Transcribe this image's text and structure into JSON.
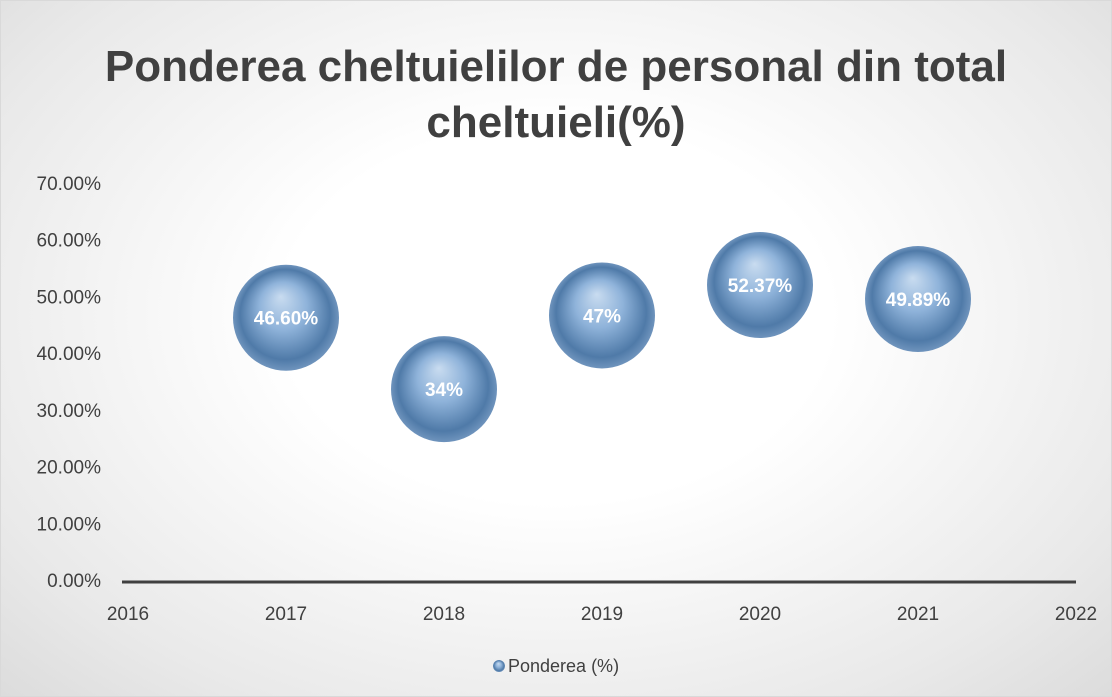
{
  "chart_data": {
    "type": "bubble",
    "title": "Ponderea cheltuielilor de personal din total cheltuieli(%)",
    "x": [
      2017,
      2018,
      2019,
      2020,
      2021
    ],
    "series": [
      {
        "name": "Ponderea (%)",
        "color": "#6f9fd0",
        "values": [
          46.6,
          34,
          47,
          52.37,
          49.89
        ],
        "value_labels": [
          "46.60%",
          "34%",
          "47%",
          "52.37%",
          "49.89%"
        ]
      }
    ],
    "xlim": [
      2016,
      2022
    ],
    "xticks": [
      2016,
      2017,
      2018,
      2019,
      2020,
      2021,
      2022
    ],
    "ylim": [
      0,
      70
    ],
    "yticks": [
      {
        "value": 0,
        "label": "0.00%"
      },
      {
        "value": 10,
        "label": "10.00%"
      },
      {
        "value": 20,
        "label": "20.00%"
      },
      {
        "value": 30,
        "label": "30.00%"
      },
      {
        "value": 40,
        "label": "40.00%"
      },
      {
        "value": 50,
        "label": "50.00%"
      },
      {
        "value": 60,
        "label": "60.00%"
      },
      {
        "value": 70,
        "label": "70.00%"
      }
    ],
    "grid": false,
    "legend": "bottom"
  }
}
